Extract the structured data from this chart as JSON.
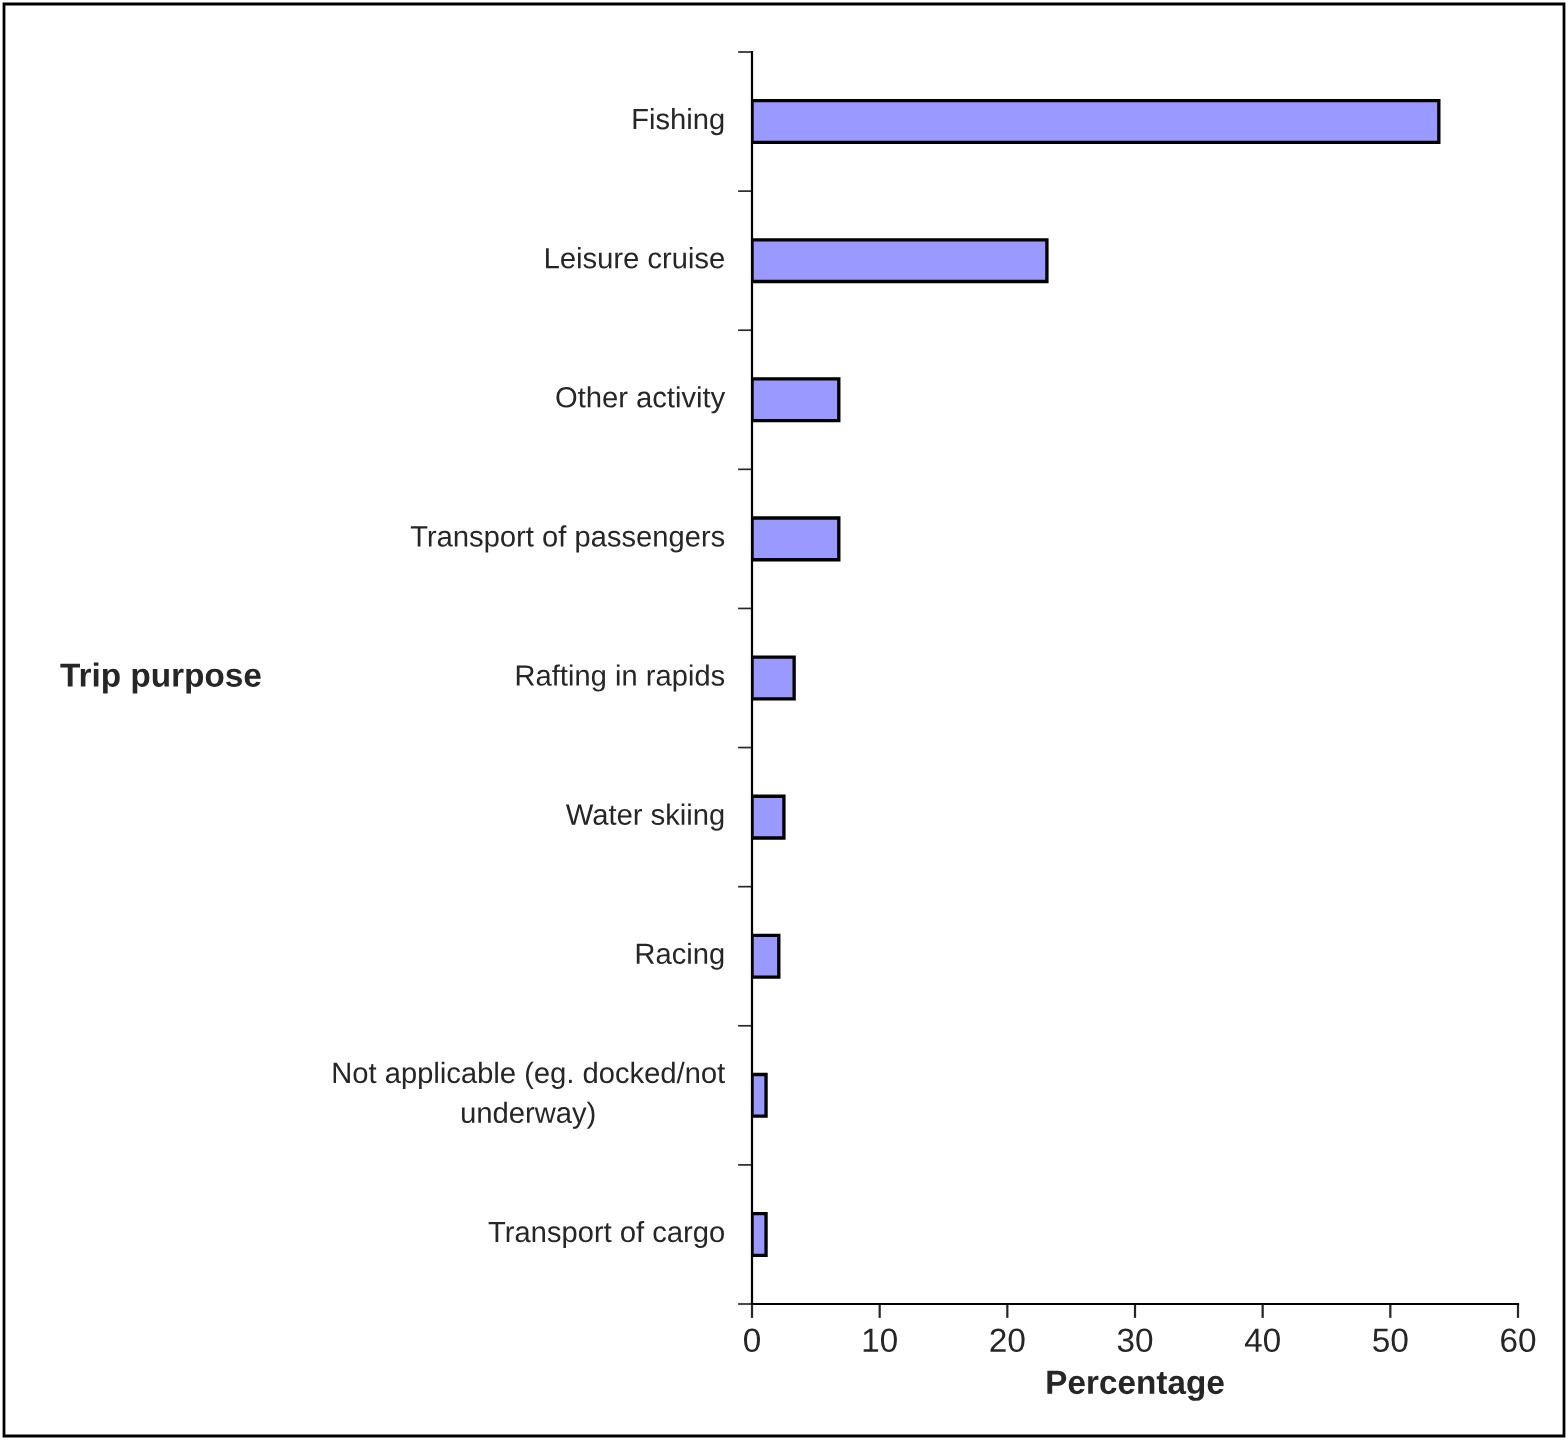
{
  "chart_data": {
    "type": "bar",
    "orientation": "horizontal",
    "xlabel": "Percentage",
    "ylabel": "Trip purpose",
    "categories": [
      "Fishing",
      "Leisure cruise",
      "Other activity",
      "Transport of passengers",
      "Rafting in rapids",
      "Water skiing",
      "Racing",
      "Not applicable (eg. docked/not underway)",
      "Transport of cargo"
    ],
    "values": [
      53.8,
      23.1,
      6.8,
      6.8,
      3.3,
      2.5,
      2.1,
      1.1,
      1.1
    ],
    "color": "#9999ff",
    "xlim": [
      0,
      60
    ],
    "xticks": [
      0,
      10,
      20,
      30,
      40,
      50,
      60
    ],
    "grid": false
  }
}
